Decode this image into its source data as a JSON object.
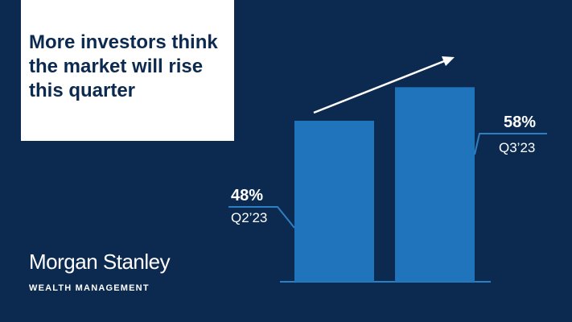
{
  "title": "More investors think\nthe market will rise\nthis quarter",
  "brand": {
    "name": "Morgan Stanley",
    "division": "WEALTH MANAGEMENT"
  },
  "colors": {
    "background": "#0c2a4f",
    "bar": "#1f74bb",
    "white": "#ffffff",
    "label_line": "#2d7fc4"
  },
  "chart_data": {
    "type": "bar",
    "categories": [
      "Q2’23",
      "Q3’23"
    ],
    "values": [
      48,
      58
    ],
    "value_labels": [
      "48%",
      "58%"
    ],
    "trend_arrow": "up",
    "title": "More investors think\nthe market will rise\nthis quarter",
    "xlabel": "",
    "ylabel": "",
    "grid": false
  }
}
